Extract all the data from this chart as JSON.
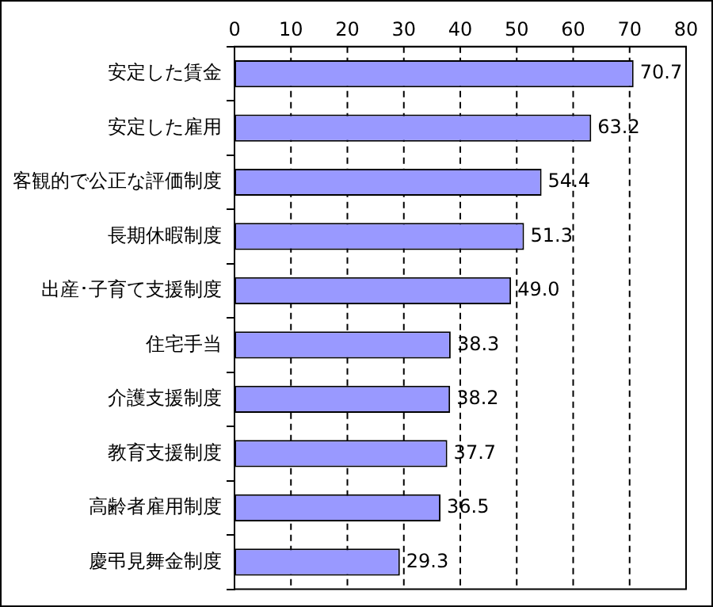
{
  "chart_data": {
    "type": "bar",
    "orientation": "horizontal",
    "categories": [
      "安定した賃金",
      "安定した雇用",
      "客観的で公正な評価制度",
      "長期休暇制度",
      "出産･子育て支援制度",
      "住宅手当",
      "介護支援制度",
      "教育支援制度",
      "高齢者雇用制度",
      "慶弔見舞金制度"
    ],
    "values": [
      70.7,
      63.2,
      54.4,
      51.3,
      49.0,
      38.3,
      38.2,
      37.7,
      36.5,
      29.3
    ],
    "value_labels": [
      "70.7",
      "63.2",
      "54.4",
      "51.3",
      "49.0",
      "38.3",
      "38.2",
      "37.7",
      "36.5",
      "29.3"
    ],
    "color": "#9999ff",
    "xlim": [
      0,
      80
    ],
    "xticks": [
      0,
      10,
      20,
      30,
      40,
      50,
      60,
      70,
      80
    ],
    "grid": "x",
    "line_style": "dashed",
    "legend": false
  }
}
